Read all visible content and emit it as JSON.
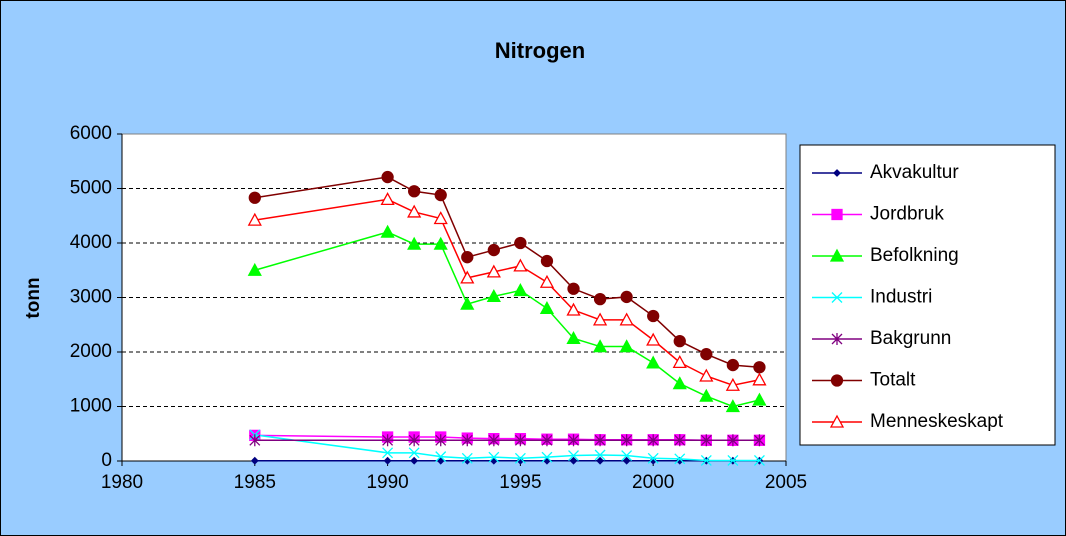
{
  "chart_data": {
    "type": "line",
    "title": "Nitrogen",
    "y_label": "tonn",
    "x": [
      1985,
      1990,
      1991,
      1992,
      1993,
      1994,
      1995,
      1996,
      1997,
      1998,
      1999,
      2000,
      2001,
      2002,
      2003,
      2004
    ],
    "xlim": [
      1980,
      2005
    ],
    "xticks": [
      1980,
      1985,
      1990,
      1995,
      2000,
      2005
    ],
    "ylim": [
      0,
      6000
    ],
    "yticks": [
      0,
      1000,
      2000,
      3000,
      4000,
      5000,
      6000
    ],
    "grid": true,
    "legend": "right",
    "series": [
      {
        "name": "Akvakultur",
        "color": "#000080",
        "marker": "diamond",
        "values": [
          5,
          5,
          5,
          5,
          5,
          5,
          5,
          5,
          5,
          5,
          5,
          5,
          5,
          5,
          5,
          5
        ]
      },
      {
        "name": "Jordbruk",
        "color": "#ff00ff",
        "marker": "square",
        "values": [
          470,
          440,
          440,
          440,
          420,
          410,
          410,
          400,
          400,
          390,
          390,
          390,
          390,
          380,
          380,
          380
        ]
      },
      {
        "name": "Befolkning",
        "color": "#00ff00",
        "marker": "triangle",
        "values": [
          3500,
          4200,
          3980,
          3980,
          2880,
          3020,
          3130,
          2800,
          2250,
          2100,
          2100,
          1800,
          1420,
          1190,
          1000,
          1120
        ]
      },
      {
        "name": "Industri",
        "color": "#00ffff",
        "marker": "x",
        "values": [
          480,
          150,
          150,
          80,
          50,
          70,
          50,
          70,
          100,
          110,
          100,
          50,
          40,
          10,
          10,
          10
        ]
      },
      {
        "name": "Bakgrunn",
        "color": "#800080",
        "marker": "star",
        "values": [
          380,
          380,
          380,
          380,
          380,
          380,
          380,
          380,
          380,
          380,
          380,
          380,
          380,
          380,
          380,
          380
        ]
      },
      {
        "name": "Totalt",
        "color": "#800000",
        "marker": "circle",
        "values": [
          4830,
          5210,
          4950,
          4880,
          3740,
          3870,
          4000,
          3670,
          3160,
          2970,
          3010,
          2660,
          2200,
          1960,
          1760,
          1720
        ]
      },
      {
        "name": "Menneskeskapt",
        "color": "#ff0000",
        "marker": "open-triangle",
        "values": [
          4420,
          4800,
          4570,
          4450,
          3360,
          3470,
          3580,
          3280,
          2770,
          2590,
          2590,
          2220,
          1810,
          1560,
          1390,
          1490
        ]
      }
    ]
  }
}
